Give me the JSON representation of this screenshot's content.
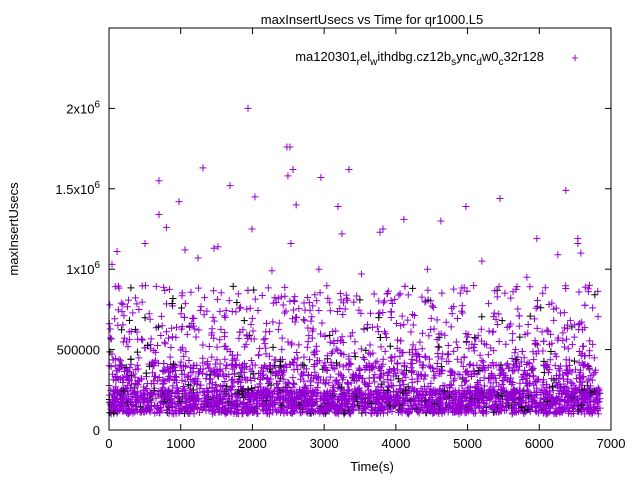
{
  "chart_data": {
    "type": "scatter",
    "title": "maxInsertUsecs vs Time for qr1000.L5",
    "xlabel": "Time(s)",
    "ylabel": "maxInsertUsecs",
    "xlim": [
      0,
      7000
    ],
    "ylim": [
      0,
      2500000
    ],
    "grid": false,
    "legend_placement": "top-right",
    "x_ticks": [
      {
        "value": 0,
        "label": "0"
      },
      {
        "value": 1000,
        "label": "1000"
      },
      {
        "value": 2000,
        "label": "2000"
      },
      {
        "value": 3000,
        "label": "3000"
      },
      {
        "value": 4000,
        "label": "4000"
      },
      {
        "value": 5000,
        "label": "5000"
      },
      {
        "value": 6000,
        "label": "6000"
      },
      {
        "value": 7000,
        "label": "7000"
      }
    ],
    "y_ticks": [
      {
        "value": 0,
        "label": "0",
        "exp": ""
      },
      {
        "value": 500000,
        "label": "500000",
        "exp": ""
      },
      {
        "value": 1000000,
        "label": "1x10",
        "exp": "6"
      },
      {
        "value": 1500000,
        "label": "1.5x10",
        "exp": "6"
      },
      {
        "value": 2000000,
        "label": "2x10",
        "exp": "6"
      }
    ],
    "series": [
      {
        "name": "ma120301_rel_withdbg.cz12b_sync_dw0_c32r128",
        "legend_parts": [
          {
            "t": "ma120301",
            "sub": false
          },
          {
            "t": "r",
            "sub": true
          },
          {
            "t": "el",
            "sub": false
          },
          {
            "t": "w",
            "sub": true
          },
          {
            "t": "ithdbg.cz12b",
            "sub": false
          },
          {
            "t": "s",
            "sub": true
          },
          {
            "t": "ync",
            "sub": false
          },
          {
            "t": "d",
            "sub": true
          },
          {
            "t": "w0",
            "sub": false
          },
          {
            "t": "c",
            "sub": true
          },
          {
            "t": "32r128",
            "sub": false
          }
        ],
        "color": "#9400d3",
        "marker": "+",
        "outliers": [
          [
            1938,
            2000000
          ],
          [
            2481,
            1760000
          ],
          [
            2523,
            1760000
          ],
          [
            1310,
            1630000
          ],
          [
            3346,
            1620000
          ],
          [
            2565,
            1620000
          ],
          [
            697,
            1550000
          ],
          [
            2955,
            1570000
          ],
          [
            1687,
            1520000
          ],
          [
            6370,
            1490000
          ],
          [
            5451,
            1440000
          ],
          [
            976,
            1420000
          ],
          [
            2035,
            1450000
          ],
          [
            2495,
            1580000
          ],
          [
            697,
            1340000
          ],
          [
            3193,
            1390000
          ],
          [
            4977,
            1390000
          ],
          [
            3778,
            1230000
          ],
          [
            3248,
            1220000
          ],
          [
            1464,
            1130000
          ],
          [
            502,
            1160000
          ],
          [
            112,
            1110000
          ],
          [
            6538,
            1160000
          ],
          [
            5966,
            1190000
          ],
          [
            1994,
            1250000
          ],
          [
            2537,
            1160000
          ],
          [
            4112,
            1310000
          ],
          [
            4628,
            1300000
          ],
          [
            6538,
            1190000
          ],
          [
            6259,
            1090000
          ],
          [
            42,
            1030000
          ],
          [
            1241,
            1070000
          ],
          [
            2272,
            990000
          ],
          [
            2927,
            1000000
          ],
          [
            5827,
            950000
          ],
          [
            800,
            1260000
          ],
          [
            1520,
            1140000
          ],
          [
            3820,
            1250000
          ],
          [
            4440,
            1000000
          ],
          [
            6580,
            1100000
          ],
          [
            2610,
            1400000
          ],
          [
            1060,
            1120000
          ],
          [
            5200,
            1050000
          ],
          [
            6700,
            900000
          ],
          [
            3520,
            970000
          ]
        ],
        "bulk": {
          "x_range": [
            0,
            6850
          ],
          "core_range": [
            100000,
            400000
          ],
          "spread_max": 900000,
          "count": 3600
        },
        "secondary_color": "#000000"
      }
    ]
  }
}
